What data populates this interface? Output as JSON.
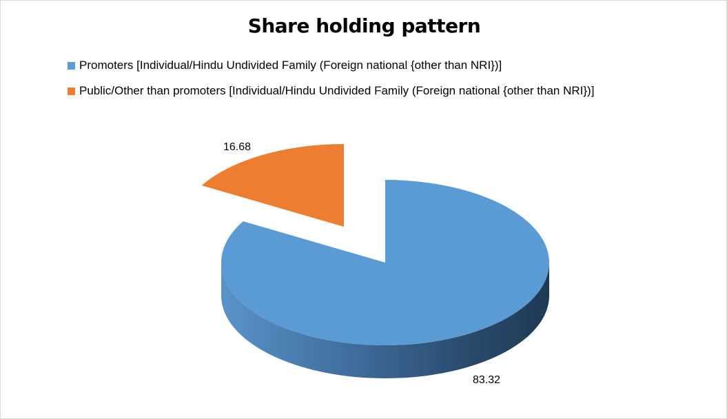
{
  "chart_data": {
    "type": "pie",
    "title": "Share holding pattern",
    "legend_position": "top-left",
    "series": [
      {
        "name": "Promoters [Individual/Hindu Undivided Family (Foreign national {other than NRI})]",
        "value": 83.32,
        "label": "83.32",
        "color": "#5b9bd5"
      },
      {
        "name": "Public/Other than promoters [Individual/Hindu Undivided Family (Foreign national {other than NRI})]",
        "value": 16.68,
        "label": "16.68",
        "color": "#ed7d31"
      }
    ]
  }
}
